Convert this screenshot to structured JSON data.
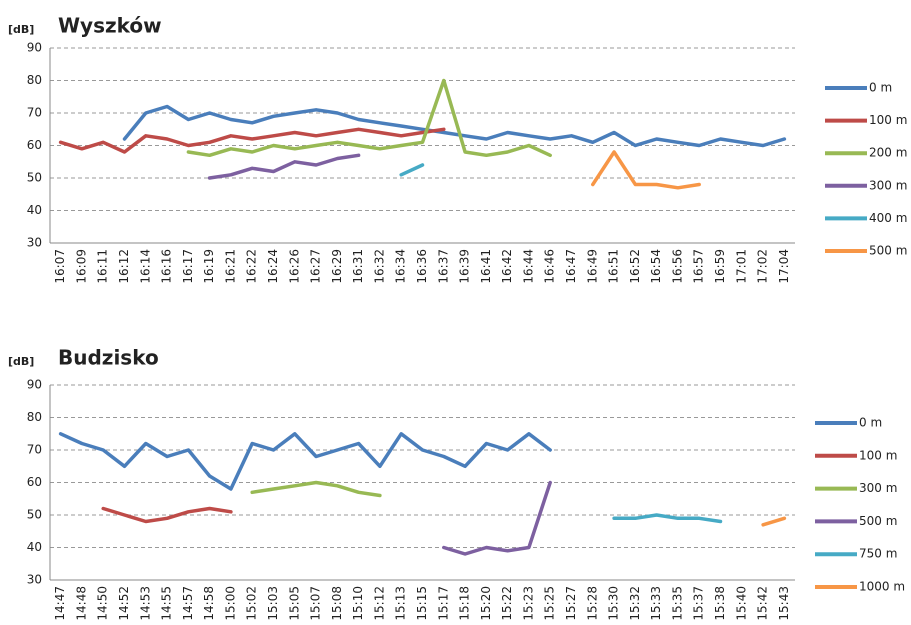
{
  "chart_data": [
    {
      "type": "line",
      "title": "Wyszków",
      "y_label": "[dB]",
      "categories": [
        "16:07",
        "16:09",
        "16:11",
        "16:12",
        "16:14",
        "16:16",
        "16:17",
        "16:19",
        "16:21",
        "16:22",
        "16:24",
        "16:26",
        "16:27",
        "16:29",
        "16:31",
        "16:32",
        "16:34",
        "16:36",
        "16:37",
        "16:39",
        "16:41",
        "16:42",
        "16:44",
        "16:46",
        "16:47",
        "16:49",
        "16:51",
        "16:52",
        "16:54",
        "16:56",
        "16:57",
        "16:59",
        "17:01",
        "17:02",
        "17:04"
      ],
      "ylim": [
        30,
        90
      ],
      "yticks": [
        30,
        40,
        50,
        60,
        70,
        80,
        90
      ],
      "grid": true,
      "series": [
        {
          "name": "0 m",
          "color": "#4a7ebb",
          "values": [
            null,
            null,
            null,
            62,
            70,
            72,
            68,
            70,
            68,
            67,
            69,
            70,
            71,
            70,
            68,
            67,
            66,
            65,
            64,
            63,
            62,
            64,
            63,
            62,
            63,
            61,
            64,
            60,
            62,
            61,
            60,
            62,
            61,
            60,
            62
          ]
        },
        {
          "name": "100 m",
          "color": "#be4b48",
          "values": [
            61,
            59,
            61,
            58,
            63,
            62,
            60,
            61,
            63,
            62,
            63,
            64,
            63,
            64,
            65,
            64,
            63,
            64,
            65,
            null,
            null,
            null,
            null,
            null,
            null,
            null,
            null,
            null,
            null,
            null,
            null,
            null,
            null,
            null,
            null
          ]
        },
        {
          "name": "200 m",
          "color": "#98b954",
          "values": [
            null,
            null,
            null,
            null,
            null,
            null,
            58,
            57,
            59,
            58,
            60,
            59,
            60,
            61,
            60,
            59,
            60,
            61,
            80,
            58,
            57,
            58,
            60,
            57,
            null,
            null,
            null,
            null,
            null,
            null,
            null,
            null,
            null,
            null,
            null
          ]
        },
        {
          "name": "300 m",
          "color": "#7d60a0",
          "values": [
            null,
            null,
            null,
            null,
            null,
            null,
            null,
            50,
            51,
            53,
            52,
            55,
            54,
            56,
            57,
            null,
            null,
            null,
            null,
            null,
            null,
            null,
            null,
            null,
            null,
            null,
            null,
            null,
            null,
            null,
            null,
            null,
            null,
            null,
            null
          ]
        },
        {
          "name": "400 m",
          "color": "#46aac5",
          "values": [
            null,
            null,
            null,
            null,
            null,
            null,
            null,
            null,
            null,
            null,
            null,
            null,
            null,
            null,
            null,
            null,
            51,
            54,
            null,
            null,
            null,
            null,
            null,
            null,
            null,
            null,
            null,
            null,
            null,
            null,
            null,
            null,
            null,
            null,
            null
          ]
        },
        {
          "name": "500 m",
          "color": "#f79646",
          "values": [
            null,
            null,
            null,
            null,
            null,
            null,
            null,
            null,
            null,
            null,
            null,
            null,
            null,
            null,
            null,
            null,
            null,
            null,
            null,
            null,
            null,
            null,
            null,
            null,
            null,
            48,
            58,
            48,
            48,
            47,
            48,
            null,
            null,
            null,
            null
          ]
        }
      ]
    },
    {
      "type": "line",
      "title": "Budzisko",
      "y_label": "[dB]",
      "categories": [
        "14:47",
        "14:48",
        "14:50",
        "14:52",
        "14:53",
        "14:55",
        "14:57",
        "14:58",
        "15:00",
        "15:02",
        "15:03",
        "15:05",
        "15:07",
        "15:08",
        "15:10",
        "15:12",
        "15:13",
        "15:15",
        "15:17",
        "15:18",
        "15:20",
        "15:22",
        "15:23",
        "15:25",
        "15:27",
        "15:28",
        "15:30",
        "15:32",
        "15:33",
        "15:35",
        "15:37",
        "15:38",
        "15:40",
        "15:42",
        "15:43"
      ],
      "ylim": [
        30,
        90
      ],
      "yticks": [
        30,
        40,
        50,
        60,
        70,
        80,
        90
      ],
      "grid": true,
      "series": [
        {
          "name": "0 m",
          "color": "#4a7ebb",
          "values": [
            75,
            72,
            70,
            65,
            72,
            68,
            70,
            62,
            58,
            72,
            70,
            75,
            68,
            70,
            72,
            65,
            75,
            70,
            68,
            65,
            72,
            70,
            75,
            70,
            null,
            null,
            null,
            null,
            null,
            null,
            null,
            null,
            null,
            null,
            null
          ]
        },
        {
          "name": "100 m",
          "color": "#be4b48",
          "values": [
            null,
            null,
            52,
            50,
            48,
            49,
            51,
            52,
            51,
            null,
            null,
            null,
            null,
            null,
            null,
            null,
            null,
            null,
            null,
            null,
            null,
            null,
            null,
            null,
            null,
            null,
            null,
            null,
            null,
            null,
            null,
            null,
            null,
            null,
            null
          ]
        },
        {
          "name": "300 m",
          "color": "#98b954",
          "values": [
            null,
            null,
            null,
            null,
            null,
            null,
            null,
            null,
            null,
            57,
            58,
            59,
            60,
            59,
            57,
            56,
            null,
            null,
            null,
            null,
            null,
            null,
            null,
            null,
            null,
            null,
            null,
            null,
            null,
            null,
            null,
            null,
            null,
            null,
            null
          ]
        },
        {
          "name": "500 m",
          "color": "#7d60a0",
          "values": [
            null,
            null,
            null,
            null,
            null,
            null,
            null,
            null,
            null,
            null,
            null,
            null,
            null,
            null,
            null,
            null,
            null,
            null,
            40,
            38,
            40,
            39,
            40,
            60,
            null,
            null,
            null,
            null,
            null,
            null,
            null,
            null,
            null,
            null,
            null
          ]
        },
        {
          "name": "750 m",
          "color": "#46aac5",
          "values": [
            null,
            null,
            null,
            null,
            null,
            null,
            null,
            null,
            null,
            null,
            null,
            null,
            null,
            null,
            null,
            null,
            null,
            null,
            null,
            null,
            null,
            null,
            null,
            null,
            null,
            null,
            49,
            49,
            50,
            49,
            49,
            48,
            null,
            null,
            null
          ]
        },
        {
          "name": "1000 m",
          "color": "#f79646",
          "values": [
            null,
            null,
            null,
            null,
            null,
            null,
            null,
            null,
            null,
            null,
            null,
            null,
            null,
            null,
            null,
            null,
            null,
            null,
            null,
            null,
            null,
            null,
            null,
            null,
            null,
            null,
            null,
            null,
            null,
            null,
            null,
            null,
            null,
            47,
            49
          ]
        }
      ]
    }
  ]
}
